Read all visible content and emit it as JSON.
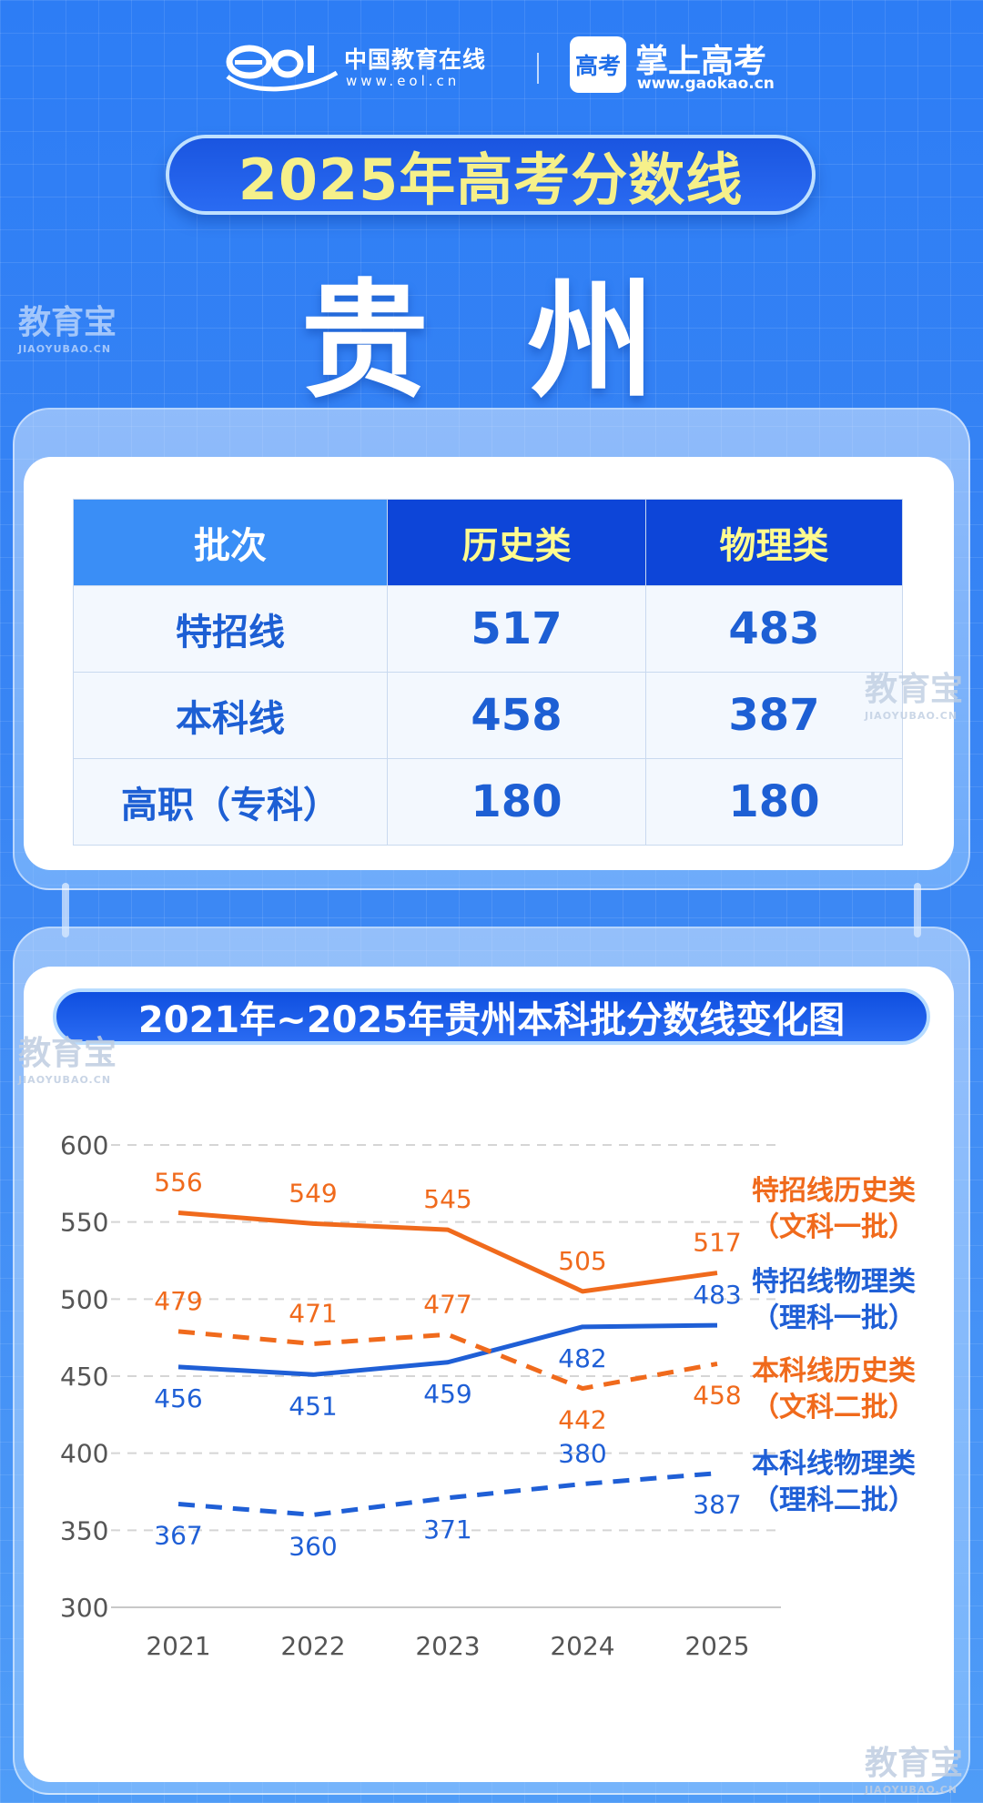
{
  "header": {
    "eol_brand": "中国教育在线",
    "eol_url": "www.eol.cn",
    "gaokao_icon_text": "高考",
    "gaokao_brand": "掌上高考",
    "gaokao_url": "www.gaokao.cn"
  },
  "title": "2025年高考分数线",
  "province": "贵 州",
  "score_table": {
    "headers": [
      "批次",
      "历史类",
      "物理类"
    ],
    "rows": [
      {
        "label": "特招线",
        "history": "517",
        "physics": "483"
      },
      {
        "label": "本科线",
        "history": "458",
        "physics": "387"
      },
      {
        "label": "高职（专科）",
        "history": "180",
        "physics": "180"
      }
    ]
  },
  "watermark": {
    "main": "教育宝",
    "sub": "JIAOYUBAO.CN"
  },
  "chart_data": {
    "type": "line",
    "title": "2021年~2025年贵州本科批分数线变化图",
    "categories": [
      "2021",
      "2022",
      "2023",
      "2024",
      "2025"
    ],
    "ylim": [
      300,
      600
    ],
    "yticks": [
      300,
      350,
      400,
      450,
      500,
      550,
      600
    ],
    "grid": true,
    "legend_placement": "right",
    "series": [
      {
        "name": "特招线历史类",
        "sub": "（文科一批）",
        "values": [
          556,
          549,
          545,
          505,
          517
        ],
        "color": "#f06a1c",
        "dash": false
      },
      {
        "name": "特招线物理类",
        "sub": "（理科一批）",
        "values": [
          456,
          451,
          459,
          482,
          483
        ],
        "color": "#1f5fd6",
        "dash": false
      },
      {
        "name": "本科线历史类",
        "sub": "（文科二批）",
        "values": [
          479,
          471,
          477,
          442,
          458
        ],
        "color": "#f06a1c",
        "dash": true
      },
      {
        "name": "本科线物理类",
        "sub": "（理科二批）",
        "values": [
          367,
          360,
          371,
          380,
          387
        ],
        "color": "#1f5fd6",
        "dash": true
      }
    ]
  },
  "colors": {
    "background": "#2d7df5",
    "title_text": "#f6f08a",
    "table_header_dark": "#0d45d8",
    "table_value": "#1d5fd4",
    "history_orange": "#f06a1c",
    "physics_blue": "#1f5fd6"
  }
}
